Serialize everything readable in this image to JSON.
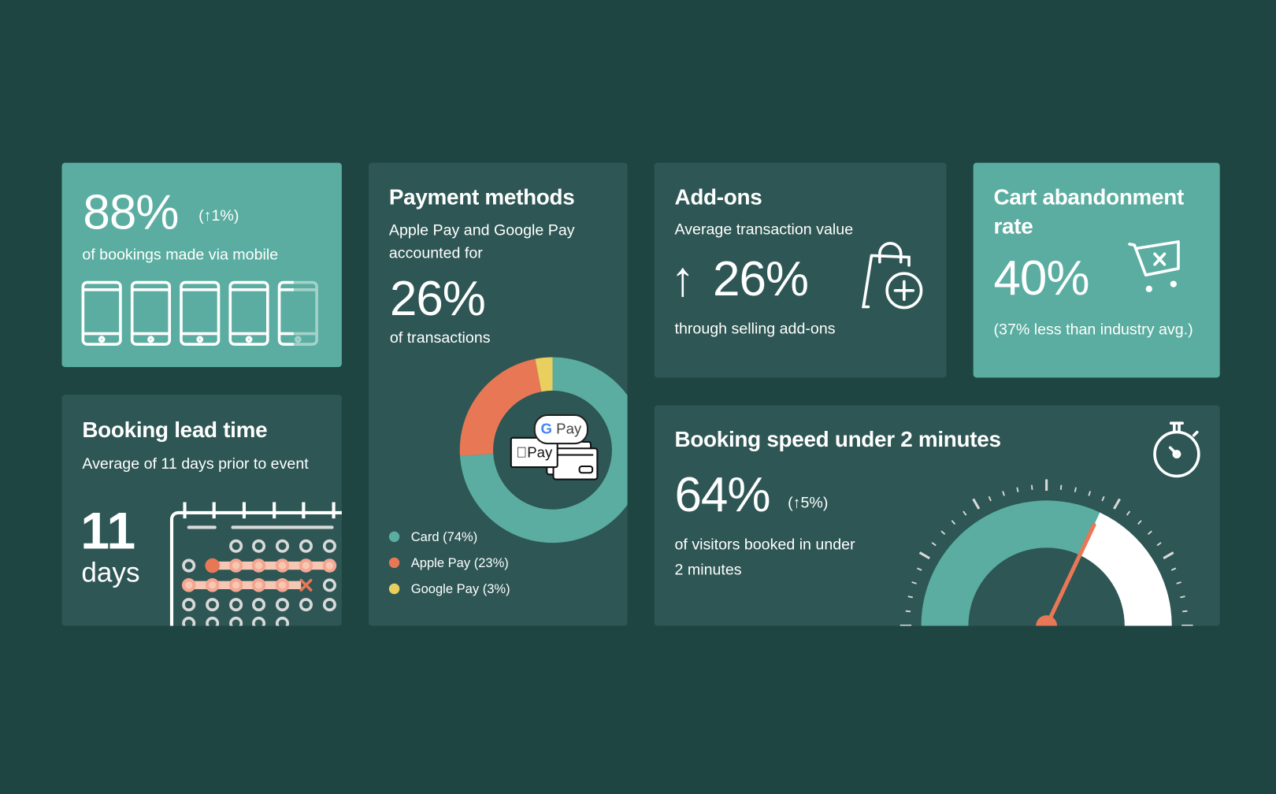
{
  "colors": {
    "background": "#1e4542",
    "card_dark": "#2d5654",
    "card_teal": "#5aada0",
    "accent_orange": "#e87756",
    "accent_yellow": "#e9cf5d",
    "pink": "#f7c7b6"
  },
  "mobile": {
    "value": "88%",
    "change": "(↑1%)",
    "caption": "of bookings made via mobile",
    "icon": "smartphone-icon",
    "share": 0.88
  },
  "payment": {
    "title": "Payment methods",
    "intro_line1": "Apple Pay and Google Pay",
    "intro_line2": "accounted for",
    "value": "26%",
    "caption": "of transactions",
    "gpay_badge": "Pay",
    "applepay_badge": "Pay"
  },
  "chart_data": {
    "type": "pie",
    "donut": true,
    "categories": [
      "Card",
      "Apple Pay",
      "Google Pay"
    ],
    "values": [
      74,
      23,
      3
    ],
    "colors": [
      "#5aada0",
      "#e87756",
      "#e9cf5d"
    ],
    "legend": [
      "Card (74%)",
      "Apple Pay (23%)",
      "Google Pay (3%)"
    ],
    "legend_position": "bottom-left"
  },
  "addons": {
    "title": "Add-ons",
    "subtitle": "Average transaction value",
    "arrow": "↑",
    "value": "26%",
    "caption": "through selling add-ons",
    "icon": "shopping-bag-plus-icon"
  },
  "cart": {
    "title_line1": "Cart abandonment",
    "title_line2": "rate",
    "value": "40%",
    "caption": "(37% less than industry avg.)",
    "icon": "cart-x-icon"
  },
  "lead": {
    "title": "Booking lead time",
    "subtitle": "Average of 11 days prior to event",
    "value": "11",
    "unit": "days",
    "icon": "calendar-icon"
  },
  "speed": {
    "title": "Booking speed under 2 minutes",
    "value": "64%",
    "change": "(↑5%)",
    "caption_line1": "of visitors booked in under",
    "caption_line2": "2 minutes",
    "gauge_fraction": 0.64,
    "icon": "stopwatch-icon"
  }
}
